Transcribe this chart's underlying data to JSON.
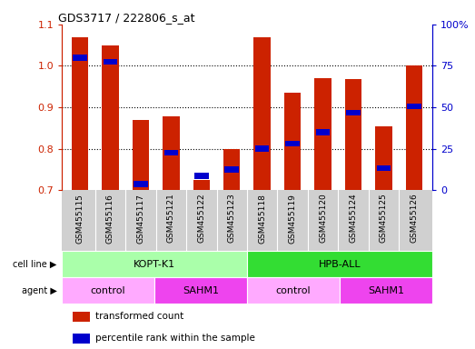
{
  "title": "GDS3717 / 222806_s_at",
  "samples": [
    "GSM455115",
    "GSM455116",
    "GSM455117",
    "GSM455121",
    "GSM455122",
    "GSM455123",
    "GSM455118",
    "GSM455119",
    "GSM455120",
    "GSM455124",
    "GSM455125",
    "GSM455126"
  ],
  "red_values": [
    1.07,
    1.05,
    0.87,
    0.878,
    0.725,
    0.8,
    1.07,
    0.935,
    0.97,
    0.968,
    0.855,
    1.0
  ],
  "blue_values": [
    1.02,
    1.01,
    0.715,
    0.79,
    0.735,
    0.75,
    0.8,
    0.812,
    0.84,
    0.887,
    0.753,
    0.902
  ],
  "ylim_left": [
    0.7,
    1.1
  ],
  "ylim_right": [
    0,
    100
  ],
  "yticks_left": [
    0.7,
    0.8,
    0.9,
    1.0,
    1.1
  ],
  "yticks_right": [
    0,
    25,
    50,
    75,
    100
  ],
  "yticklabels_right": [
    "0",
    "25",
    "50",
    "75",
    "100%"
  ],
  "cell_line_groups": [
    {
      "label": "KOPT-K1",
      "start": 0,
      "end": 6,
      "color": "#aaffaa"
    },
    {
      "label": "HPB-ALL",
      "start": 6,
      "end": 12,
      "color": "#33dd33"
    }
  ],
  "agent_groups": [
    {
      "label": "control",
      "start": 0,
      "end": 3,
      "color": "#ffaaff"
    },
    {
      "label": "SAHM1",
      "start": 3,
      "end": 6,
      "color": "#ee44ee"
    },
    {
      "label": "control",
      "start": 6,
      "end": 9,
      "color": "#ffaaff"
    },
    {
      "label": "SAHM1",
      "start": 9,
      "end": 12,
      "color": "#ee44ee"
    }
  ],
  "legend_items": [
    {
      "label": "transformed count",
      "color": "#CC2200"
    },
    {
      "label": "percentile rank within the sample",
      "color": "#0000CC"
    }
  ],
  "bar_width": 0.55,
  "bar_bottom": 0.7,
  "left_tick_color": "#CC2200",
  "right_tick_color": "#0000CC",
  "xtick_bg": "#d0d0d0"
}
